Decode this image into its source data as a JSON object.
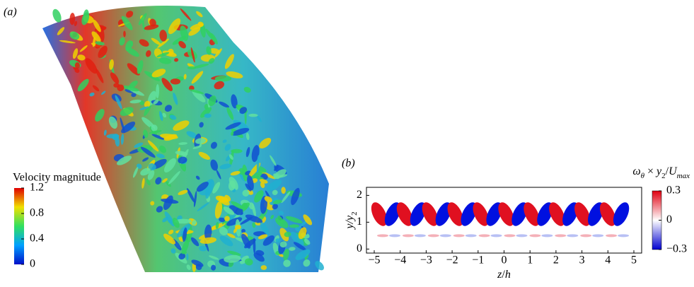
{
  "panel_a": {
    "label": "(a)",
    "colorbar": {
      "title": "Velocity magnitude",
      "clim": [
        0,
        1.2
      ],
      "ticks": [
        1.2,
        0.8,
        0.4,
        0
      ]
    }
  },
  "panel_b": {
    "label": "(b)",
    "xlabel": [
      "z",
      "/",
      "h"
    ],
    "ylabel": [
      "y",
      "/y",
      "2"
    ],
    "xlim": [
      -5.3,
      5.3
    ],
    "ylim": [
      -0.15,
      2.3
    ],
    "xticks": [
      {
        "value": -5,
        "label": "−5"
      },
      {
        "value": -4,
        "label": "−4"
      },
      {
        "value": -3,
        "label": "−3"
      },
      {
        "value": -2,
        "label": "−2"
      },
      {
        "value": -1,
        "label": "−1"
      },
      0,
      1,
      2,
      3,
      4,
      5
    ],
    "yticks": [
      0,
      1,
      2
    ],
    "colorbar": {
      "title": [
        "ω",
        "θ",
        " × ",
        "y",
        "2",
        "/",
        "U",
        "max"
      ],
      "clim": [
        -0.3,
        0.3
      ],
      "ticks": [
        0.3,
        0,
        {
          "value": -0.3,
          "label": "−0.3"
        }
      ]
    }
  }
}
